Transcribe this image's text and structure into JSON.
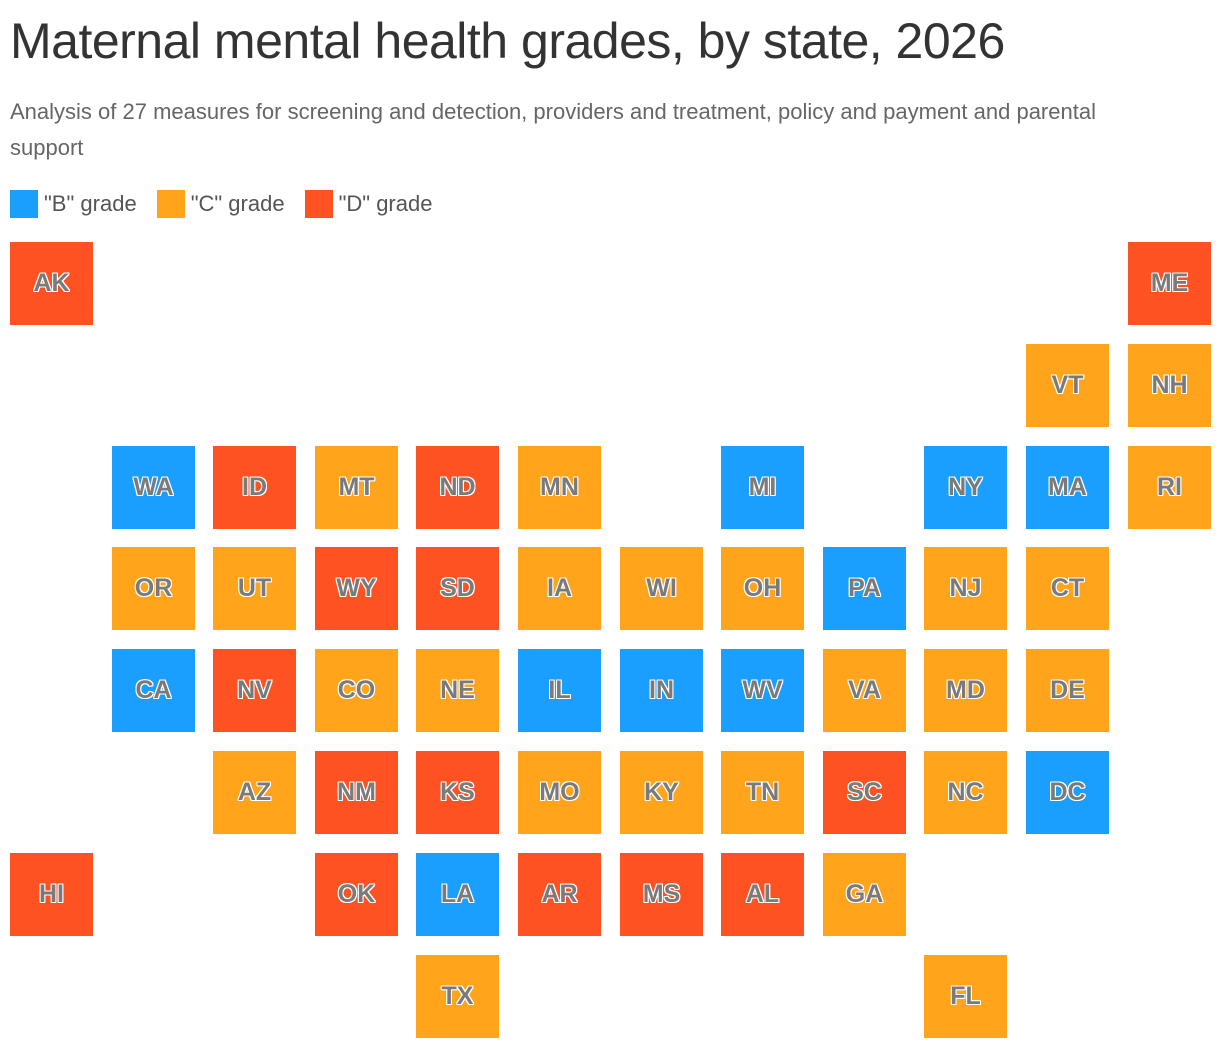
{
  "title": "Maternal mental health grades, by state, 2026",
  "subtitle": "Analysis of 27 measures for screening and detection, providers and treatment, policy and payment and parental support",
  "legend": [
    {
      "grade": "B",
      "label": "\"B\" grade",
      "color": "#1a9fff"
    },
    {
      "grade": "C",
      "label": "\"C\" grade",
      "color": "#ffa41b"
    },
    {
      "grade": "D",
      "label": "\"D\" grade",
      "color": "#ff5223"
    }
  ],
  "states": [
    {
      "code": "AK",
      "grade": "D",
      "row": 0,
      "col": 0
    },
    {
      "code": "ME",
      "grade": "D",
      "row": 0,
      "col": 11
    },
    {
      "code": "VT",
      "grade": "C",
      "row": 1,
      "col": 10
    },
    {
      "code": "NH",
      "grade": "C",
      "row": 1,
      "col": 11
    },
    {
      "code": "WA",
      "grade": "B",
      "row": 2,
      "col": 1
    },
    {
      "code": "ID",
      "grade": "D",
      "row": 2,
      "col": 2
    },
    {
      "code": "MT",
      "grade": "C",
      "row": 2,
      "col": 3
    },
    {
      "code": "ND",
      "grade": "D",
      "row": 2,
      "col": 4
    },
    {
      "code": "MN",
      "grade": "C",
      "row": 2,
      "col": 5
    },
    {
      "code": "MI",
      "grade": "B",
      "row": 2,
      "col": 7
    },
    {
      "code": "NY",
      "grade": "B",
      "row": 2,
      "col": 9
    },
    {
      "code": "MA",
      "grade": "B",
      "row": 2,
      "col": 10
    },
    {
      "code": "RI",
      "grade": "C",
      "row": 2,
      "col": 11
    },
    {
      "code": "OR",
      "grade": "C",
      "row": 3,
      "col": 1
    },
    {
      "code": "UT",
      "grade": "C",
      "row": 3,
      "col": 2
    },
    {
      "code": "WY",
      "grade": "D",
      "row": 3,
      "col": 3
    },
    {
      "code": "SD",
      "grade": "D",
      "row": 3,
      "col": 4
    },
    {
      "code": "IA",
      "grade": "C",
      "row": 3,
      "col": 5
    },
    {
      "code": "WI",
      "grade": "C",
      "row": 3,
      "col": 6
    },
    {
      "code": "OH",
      "grade": "C",
      "row": 3,
      "col": 7
    },
    {
      "code": "PA",
      "grade": "B",
      "row": 3,
      "col": 8
    },
    {
      "code": "NJ",
      "grade": "C",
      "row": 3,
      "col": 9
    },
    {
      "code": "CT",
      "grade": "C",
      "row": 3,
      "col": 10
    },
    {
      "code": "CA",
      "grade": "B",
      "row": 4,
      "col": 1
    },
    {
      "code": "NV",
      "grade": "D",
      "row": 4,
      "col": 2
    },
    {
      "code": "CO",
      "grade": "C",
      "row": 4,
      "col": 3
    },
    {
      "code": "NE",
      "grade": "C",
      "row": 4,
      "col": 4
    },
    {
      "code": "IL",
      "grade": "B",
      "row": 4,
      "col": 5
    },
    {
      "code": "IN",
      "grade": "B",
      "row": 4,
      "col": 6
    },
    {
      "code": "WV",
      "grade": "B",
      "row": 4,
      "col": 7
    },
    {
      "code": "VA",
      "grade": "C",
      "row": 4,
      "col": 8
    },
    {
      "code": "MD",
      "grade": "C",
      "row": 4,
      "col": 9
    },
    {
      "code": "DE",
      "grade": "C",
      "row": 4,
      "col": 10
    },
    {
      "code": "AZ",
      "grade": "C",
      "row": 5,
      "col": 2
    },
    {
      "code": "NM",
      "grade": "D",
      "row": 5,
      "col": 3
    },
    {
      "code": "KS",
      "grade": "D",
      "row": 5,
      "col": 4
    },
    {
      "code": "MO",
      "grade": "C",
      "row": 5,
      "col": 5
    },
    {
      "code": "KY",
      "grade": "C",
      "row": 5,
      "col": 6
    },
    {
      "code": "TN",
      "grade": "C",
      "row": 5,
      "col": 7
    },
    {
      "code": "SC",
      "grade": "D",
      "row": 5,
      "col": 8
    },
    {
      "code": "NC",
      "grade": "C",
      "row": 5,
      "col": 9
    },
    {
      "code": "DC",
      "grade": "B",
      "row": 5,
      "col": 10
    },
    {
      "code": "HI",
      "grade": "D",
      "row": 6,
      "col": 0
    },
    {
      "code": "OK",
      "grade": "D",
      "row": 6,
      "col": 3
    },
    {
      "code": "LA",
      "grade": "B",
      "row": 6,
      "col": 4
    },
    {
      "code": "AR",
      "grade": "D",
      "row": 6,
      "col": 5
    },
    {
      "code": "MS",
      "grade": "D",
      "row": 6,
      "col": 6
    },
    {
      "code": "AL",
      "grade": "D",
      "row": 6,
      "col": 7
    },
    {
      "code": "GA",
      "grade": "C",
      "row": 6,
      "col": 8
    },
    {
      "code": "TX",
      "grade": "C",
      "row": 7,
      "col": 4
    },
    {
      "code": "FL",
      "grade": "C",
      "row": 7,
      "col": 9
    }
  ]
}
